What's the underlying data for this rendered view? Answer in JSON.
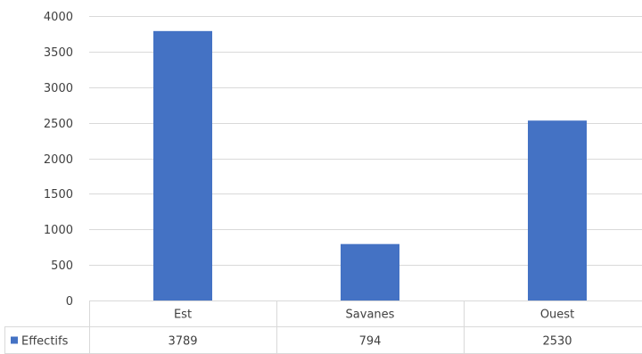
{
  "chart_data": {
    "type": "bar",
    "categories": [
      "Est",
      "Savanes",
      "Ouest"
    ],
    "series": [
      {
        "name": "Effectifs",
        "values": [
          3789,
          794,
          2530
        ],
        "color": "#4472c4"
      }
    ],
    "ylim": [
      0,
      4000
    ],
    "yticks": [
      0,
      500,
      1000,
      1500,
      2000,
      2500,
      3000,
      3500,
      4000
    ],
    "grid": true,
    "legend": "data-table",
    "data_table": true,
    "colors": {
      "grid": "#d9d9d9",
      "text": "#404040"
    }
  }
}
